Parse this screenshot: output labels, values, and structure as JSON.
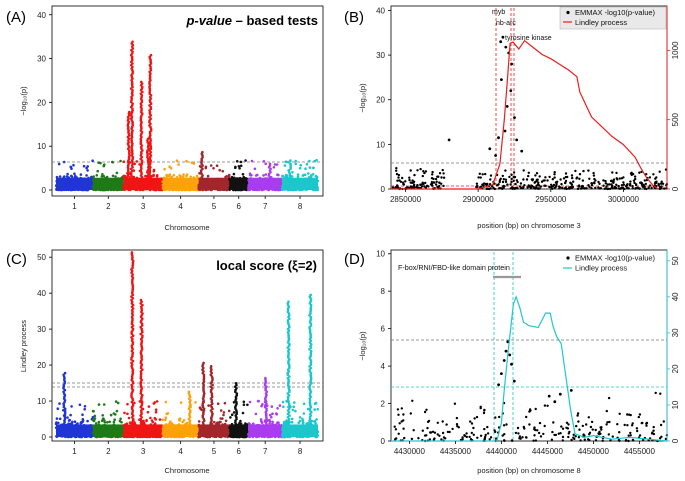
{
  "figure": {
    "title": "Manhattan plots and Lindley process",
    "palettes": {
      "chromosomes": [
        "#1f35d6",
        "#1d7a16",
        "#ef1515",
        "#ffa20a",
        "#a3262b",
        "#111111",
        "#a93cf0",
        "#1cc7cc"
      ],
      "threshold": "#777777",
      "lindley_red": "#ee1c1c",
      "lindley_cyan": "#1fc7cc"
    }
  },
  "chart_data": [
    {
      "id": "A",
      "panel_letter": "(A)",
      "type": "scatter",
      "title_italic": "p-value",
      "title_rest": " – based tests",
      "xlabel": "Chromosome",
      "ylabel": "−log₁₀(p)",
      "categories": [
        "1",
        "2",
        "3",
        "4",
        "5",
        "6",
        "7",
        "8"
      ],
      "ylim": [
        0,
        42
      ],
      "yticks": [
        "0",
        "10",
        "20",
        "30",
        "40"
      ],
      "threshold": 5.4,
      "peaks": [
        {
          "chromosome": "3",
          "value": 34.2
        },
        {
          "chromosome": "3",
          "value": 31.0
        },
        {
          "chromosome": "3",
          "value": 25.0
        },
        {
          "chromosome": "3",
          "value": 18.0
        },
        {
          "chromosome": "3",
          "value": 12.0
        },
        {
          "chromosome": "5",
          "value": 8.9
        },
        {
          "chromosome": "7",
          "value": 6.3
        },
        {
          "chromosome": "8",
          "value": 7.1
        }
      ]
    },
    {
      "id": "B",
      "panel_letter": "(B)",
      "type": "scatter+line",
      "xlabel": "position (bp) on chromosome 3",
      "ylabel": "−log₁₀(p)",
      "xlim": [
        2840000,
        3030000
      ],
      "xticks": [
        "2850000",
        "2900000",
        "2950000",
        "3000000"
      ],
      "ylim": [
        0,
        41
      ],
      "yticks": [
        "0",
        "10",
        "20",
        "30",
        "40"
      ],
      "y2ticks": [
        "0",
        "500",
        "1000"
      ],
      "threshold": 5.4,
      "legend": {
        "position": "top-right",
        "entries": [
          "EMMAX -log10(p-value)",
          "Lindley process"
        ]
      },
      "annotations": [
        "myb",
        "nb-arc",
        "tyrosine kinase"
      ],
      "lindley": {
        "x": [
          2840000,
          2900000,
          2910000,
          2915000,
          2918000,
          2920000,
          2922000,
          2924000,
          2928000,
          2932000,
          2938000,
          2944000,
          2950000,
          2956000,
          2962000,
          2968000,
          2970000,
          2978000,
          2985000,
          2992000,
          3000000,
          3008000,
          3012000,
          3016000,
          3020000,
          3024000
        ],
        "y": [
          0,
          0,
          30,
          180,
          500,
          770,
          1050,
          1060,
          1010,
          1070,
          1020,
          970,
          940,
          900,
          860,
          810,
          700,
          520,
          450,
          380,
          320,
          230,
          150,
          80,
          30,
          0
        ]
      },
      "peak_points": [
        {
          "x": 2917000,
          "y": 34.0
        },
        {
          "x": 2915500,
          "y": 33.0
        },
        {
          "x": 2919000,
          "y": 31.8
        },
        {
          "x": 2921000,
          "y": 30.5
        },
        {
          "x": 2923000,
          "y": 28.0
        },
        {
          "x": 2916000,
          "y": 24.5
        },
        {
          "x": 2922500,
          "y": 22.0
        },
        {
          "x": 2920000,
          "y": 18.5
        },
        {
          "x": 2925000,
          "y": 16.0
        },
        {
          "x": 2918500,
          "y": 13.0
        },
        {
          "x": 2914000,
          "y": 11.5
        },
        {
          "x": 2926500,
          "y": 11.0
        },
        {
          "x": 2880000,
          "y": 11.0
        },
        {
          "x": 2908000,
          "y": 9.0
        },
        {
          "x": 2930000,
          "y": 8.5
        },
        {
          "x": 2912000,
          "y": 7.5
        }
      ]
    },
    {
      "id": "C",
      "panel_letter": "(C)",
      "type": "scatter",
      "title": "local score (ξ=2)",
      "xlabel": "Chromosome",
      "ylabel": "Lindley process",
      "categories": [
        "1",
        "2",
        "3",
        "4",
        "5",
        "6",
        "7",
        "8"
      ],
      "ylim": [
        0,
        52
      ],
      "yticks": [
        "0",
        "10",
        "20",
        "30",
        "40",
        "50"
      ],
      "thresholds": [
        13.4,
        14.6
      ],
      "peaks": [
        {
          "chromosome": "1",
          "value": 18.0
        },
        {
          "chromosome": "3",
          "value": 51.5
        },
        {
          "chromosome": "3",
          "value": 38.5
        },
        {
          "chromosome": "4",
          "value": 13.0
        },
        {
          "chromosome": "5",
          "value": 21.0
        },
        {
          "chromosome": "5",
          "value": 20.0
        },
        {
          "chromosome": "6",
          "value": 15.0
        },
        {
          "chromosome": "7",
          "value": 16.5
        },
        {
          "chromosome": "8",
          "value": 40.0
        },
        {
          "chromosome": "8",
          "value": 38.0
        }
      ]
    },
    {
      "id": "D",
      "panel_letter": "(D)",
      "type": "scatter+line",
      "xlabel": "position (bp) on chromosome 8",
      "ylabel": "−log₁₀(p)",
      "xlim": [
        4428000,
        4458000
      ],
      "xticks": [
        "4430000",
        "4435000",
        "4440000",
        "4445000",
        "4450000",
        "4455000"
      ],
      "ylim": [
        0,
        10.2
      ],
      "yticks": [
        "0",
        "2",
        "4",
        "6",
        "8",
        "10"
      ],
      "y2lim": [
        0,
        52
      ],
      "y2ticks": [
        "0",
        "10",
        "20",
        "30",
        "40",
        "50"
      ],
      "threshold": 5.4,
      "threshold2": 2.75,
      "legend": {
        "position": "top-right",
        "entries": [
          "EMMAX -log10(p-value)",
          "Lindley process"
        ]
      },
      "annotations": [
        "F-box/RNI/FBD-like domain protein"
      ],
      "lindley": {
        "x": [
          4428000,
          4439500,
          4440000,
          4440300,
          4440700,
          4441000,
          4441300,
          4441600,
          4442000,
          4442400,
          4443000,
          4444000,
          4444800,
          4445300,
          4445600,
          4446000,
          4446500,
          4447000,
          4447500,
          4448000,
          4449000,
          4450000,
          4452000,
          4454000,
          4456000,
          4458000
        ],
        "y": [
          0,
          0,
          5,
          14,
          24,
          31,
          38,
          40,
          37,
          33,
          32,
          31.5,
          35.5,
          35.5,
          32,
          29,
          27,
          18,
          9,
          2,
          1,
          1.5,
          0.5,
          1,
          0.5,
          0
        ]
      },
      "peak_points": [
        {
          "x": 4440700,
          "y": 5.3
        },
        {
          "x": 4440500,
          "y": 4.8
        },
        {
          "x": 4440900,
          "y": 4.6
        },
        {
          "x": 4440300,
          "y": 4.3
        },
        {
          "x": 4441100,
          "y": 4.1
        },
        {
          "x": 4440000,
          "y": 3.6
        },
        {
          "x": 4441400,
          "y": 3.2
        },
        {
          "x": 4439700,
          "y": 3.0
        },
        {
          "x": 4445200,
          "y": 2.4
        },
        {
          "x": 4445800,
          "y": 2.1
        },
        {
          "x": 4447600,
          "y": 2.7
        },
        {
          "x": 4446400,
          "y": 2.5
        }
      ]
    }
  ]
}
